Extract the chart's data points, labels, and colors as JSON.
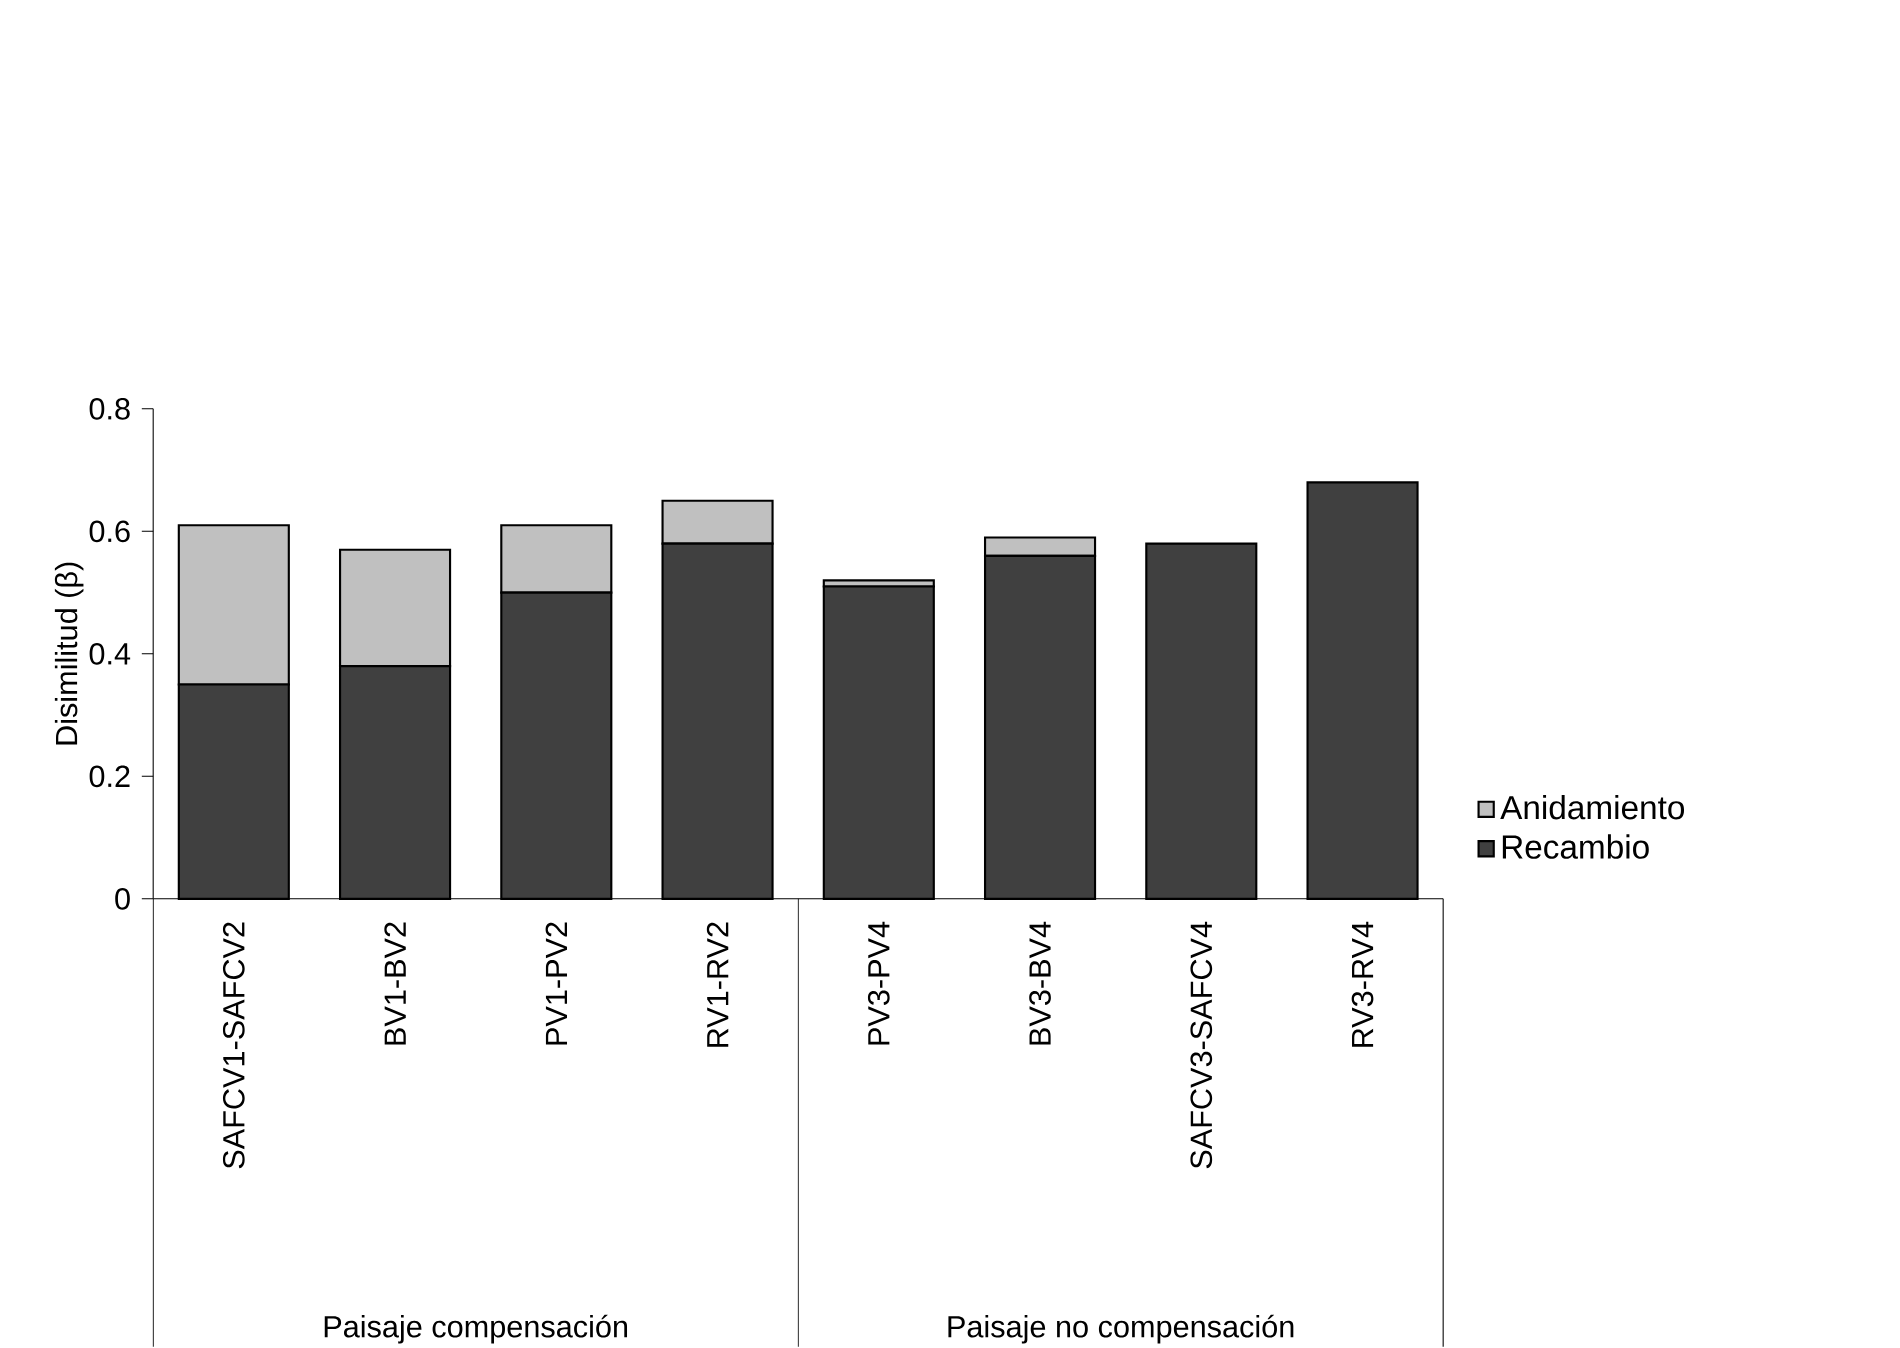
{
  "chart_data": {
    "type": "bar",
    "stacked": true,
    "ylabel": "Disimilitud (β)",
    "categories": [
      "SAFCV1-SAFCV2",
      "BV1-BV2",
      "PV1-PV2",
      "RV1-RV2",
      "PV3-PV4",
      "BV3-BV4",
      "SAFCV3-SAFCV4",
      "RV3-RV4"
    ],
    "series": [
      {
        "name": "Recambio",
        "color": "#404040",
        "values": [
          0.35,
          0.38,
          0.5,
          0.58,
          0.51,
          0.56,
          0.58,
          0.68
        ]
      },
      {
        "name": "Anidamiento",
        "color": "#c0c0c0",
        "values": [
          0.26,
          0.19,
          0.11,
          0.07,
          0.01,
          0.03,
          0,
          0
        ]
      }
    ],
    "ylim": [
      0,
      0.8
    ],
    "yticks": [
      0,
      0.2,
      0.4,
      0.6,
      0.8
    ],
    "annotations": [
      "Paisaje compensación",
      "Paisaje no compensación"
    ],
    "legend": "right",
    "grid": false
  }
}
